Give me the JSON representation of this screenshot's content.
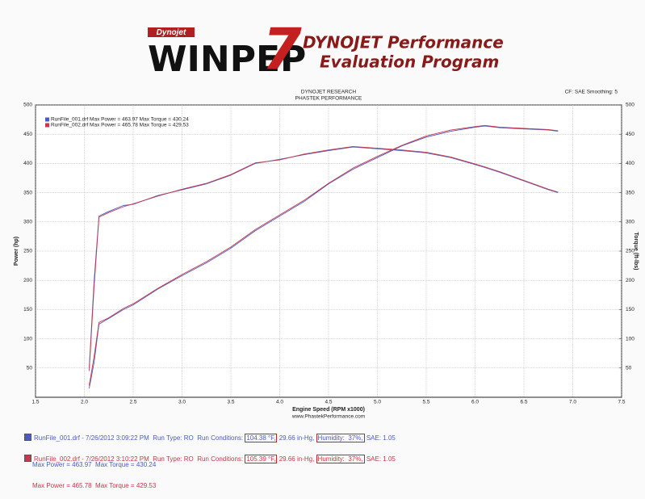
{
  "logo": {
    "brand": "Dynojet",
    "product": "WINPEP",
    "version": "7",
    "line1": "DYNOJET Performance",
    "line2": "Evaluation Program"
  },
  "chart_data": {
    "type": "line",
    "title": "DYNOJET RESEARCH",
    "subtitle": "PHASTEK PERFORMANCE",
    "settings": "CF: SAE  Smoothing: 5",
    "xlabel": "Engine Speed (RPM x1000)",
    "xnote": "www.PhastekPerformance.com",
    "ylabel": "Power (hp)",
    "y2label": "Torque (ft-lbs)",
    "xlim": [
      1.5,
      7.5
    ],
    "xticks": [
      1.5,
      {
        "value": 2,
        "label": "2.0"
      },
      2.5,
      {
        "value": 3,
        "label": "3.0"
      },
      3.5,
      {
        "value": 4,
        "label": "4.0"
      },
      4.5,
      {
        "value": 5,
        "label": "5.0"
      },
      5.5,
      {
        "value": 6,
        "label": "6.0"
      },
      6.5,
      {
        "value": 7,
        "label": "7.0"
      },
      7.5
    ],
    "ylim": [
      0,
      500
    ],
    "yticks": [
      50,
      100,
      150,
      200,
      250,
      300,
      350,
      400,
      450,
      500
    ],
    "y2lim": [
      0,
      500
    ],
    "y2ticks": [
      50,
      100,
      150,
      200,
      250,
      300,
      350,
      400,
      450,
      500
    ],
    "grid": true,
    "legend": "upper-left",
    "x": [
      2.05,
      2.1,
      2.15,
      2.25,
      2.4,
      2.5,
      2.75,
      3.0,
      3.25,
      3.5,
      3.75,
      4.0,
      4.25,
      4.5,
      4.75,
      5.0,
      5.25,
      5.5,
      5.75,
      6.0,
      6.1,
      6.25,
      6.5,
      6.75,
      6.85
    ],
    "series": [
      {
        "name": "RunFile_001.drf Max Power = 463.97    Max Torque = 430.24",
        "color": "#4a5cc4",
        "power": [
          15,
          60,
          125,
          135,
          150,
          158,
          185,
          208,
          230,
          255,
          285,
          310,
          335,
          365,
          390,
          410,
          430,
          445,
          455,
          462,
          464,
          461,
          459,
          457,
          455
        ],
        "torque": [
          50,
          200,
          310,
          318,
          328,
          330,
          345,
          355,
          365,
          380,
          400,
          407,
          415,
          422,
          428,
          425,
          422,
          418,
          410,
          398,
          393,
          385,
          370,
          355,
          350
        ]
      },
      {
        "name": "RunFile_002.drf Max Power = 465.78    Max Torque = 429.53",
        "color": "#c8384a",
        "power": [
          20,
          70,
          128,
          136,
          152,
          160,
          186,
          210,
          232,
          257,
          287,
          312,
          337,
          366,
          392,
          412,
          431,
          447,
          457,
          463,
          465,
          462,
          460,
          458,
          456
        ],
        "torque": [
          45,
          190,
          308,
          316,
          326,
          331,
          344,
          356,
          366,
          381,
          401,
          406,
          416,
          423,
          429,
          426,
          423,
          419,
          411,
          399,
          394,
          386,
          371,
          356,
          351
        ]
      }
    ]
  },
  "footer": [
    {
      "file": "RunFile_001.drf - 7/26/2012 3:09:22 PM  Run Type: RO  Run Conditions:",
      "temp": "104.38 °F,",
      "pressure": "29.66 in-Hg,",
      "humidity": "Humidity:  37%,",
      "sae": "SAE: 1.05",
      "max": "Max Power = 463.97  Max Torque = 430.24"
    },
    {
      "file": "RunFile_002.drf - 7/26/2012 3:10:22 PM  Run Type: RO  Run Conditions:",
      "temp": "105.39 °F,",
      "pressure": "29.66 in-Hg,",
      "humidity": "Humidity:  37%,",
      "sae": "SAE: 1.05",
      "max": "Max Power = 465.78  Max Torque = 429.53"
    }
  ]
}
